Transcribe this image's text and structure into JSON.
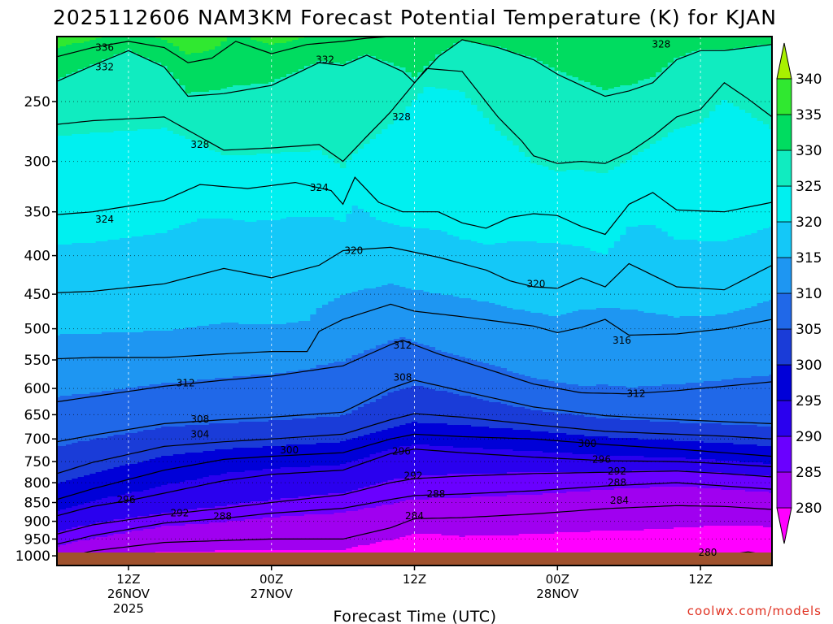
{
  "title": "2025112606 NAM3KM Forecast Potential Temperature (K) for KJAN",
  "xlabel": "Forecast Time (UTC)",
  "credit": "coolwx.com/models",
  "colors": {
    "ground": "#a0522d",
    "contour": "#000000",
    "credit": "#e03020",
    "bands": [
      "#ff00ff",
      "#a000f0",
      "#6a00ff",
      "#2a00ee",
      "#0000d8",
      "#1a3cd8",
      "#2068e8",
      "#1e96f2",
      "#14c8f8",
      "#00f0f0",
      "#10ecc0",
      "#00dc60",
      "#30e830",
      "#a8f000"
    ]
  },
  "chart_data": {
    "type": "contour",
    "title": "2025112606 NAM3KM Forecast Potential Temperature (K) for KJAN",
    "xlabel": "Forecast Time (UTC)",
    "ylabel": "",
    "y_scale": "log",
    "y_inverted": true,
    "y_ticks": [
      250,
      300,
      350,
      400,
      450,
      500,
      550,
      600,
      650,
      700,
      750,
      800,
      850,
      900,
      950,
      1000
    ],
    "y_range_hpa": [
      1030,
      205
    ],
    "x_range_hours": [
      6,
      66
    ],
    "x_ticks": [
      {
        "hour": 12,
        "lines": [
          "12Z",
          "26NOV",
          "2025"
        ]
      },
      {
        "hour": 24,
        "lines": [
          "00Z",
          "27NOV"
        ]
      },
      {
        "hour": 36,
        "lines": [
          "12Z"
        ]
      },
      {
        "hour": 48,
        "lines": [
          "00Z",
          "28NOV"
        ]
      },
      {
        "hour": 60,
        "lines": [
          "12Z"
        ]
      }
    ],
    "grid": true,
    "colorbar": {
      "levels": [
        280,
        285,
        290,
        295,
        300,
        305,
        310,
        315,
        320,
        325,
        330,
        335,
        340
      ],
      "extend": "both"
    },
    "contour_interval_k": 4,
    "contour_labels": [
      {
        "value": 336,
        "hour": 10.0,
        "p": 212
      },
      {
        "value": 332,
        "hour": 10.0,
        "p": 225
      },
      {
        "value": 332,
        "hour": 28.5,
        "p": 220
      },
      {
        "value": 328,
        "hour": 18.0,
        "p": 285
      },
      {
        "value": 328,
        "hour": 34.9,
        "p": 262
      },
      {
        "value": 328,
        "hour": 56.7,
        "p": 210
      },
      {
        "value": 324,
        "hour": 10.0,
        "p": 358
      },
      {
        "value": 324,
        "hour": 28.0,
        "p": 325
      },
      {
        "value": 320,
        "hour": 30.9,
        "p": 394
      },
      {
        "value": 320,
        "hour": 46.2,
        "p": 436
      },
      {
        "value": 316,
        "hour": 53.4,
        "p": 518
      },
      {
        "value": 312,
        "hour": 16.8,
        "p": 590
      },
      {
        "value": 312,
        "hour": 35.0,
        "p": 526
      },
      {
        "value": 312,
        "hour": 54.6,
        "p": 610
      },
      {
        "value": 308,
        "hour": 18.0,
        "p": 659
      },
      {
        "value": 308,
        "hour": 35.0,
        "p": 580
      },
      {
        "value": 304,
        "hour": 18.0,
        "p": 690
      },
      {
        "value": 300,
        "hour": 25.5,
        "p": 724
      },
      {
        "value": 300,
        "hour": 50.5,
        "p": 710
      },
      {
        "value": 296,
        "hour": 11.8,
        "p": 843
      },
      {
        "value": 296,
        "hour": 34.9,
        "p": 727
      },
      {
        "value": 296,
        "hour": 51.7,
        "p": 745
      },
      {
        "value": 292,
        "hour": 16.3,
        "p": 878
      },
      {
        "value": 292,
        "hour": 35.9,
        "p": 783
      },
      {
        "value": 292,
        "hour": 53.0,
        "p": 773
      },
      {
        "value": 288,
        "hour": 19.9,
        "p": 887
      },
      {
        "value": 288,
        "hour": 37.8,
        "p": 828
      },
      {
        "value": 288,
        "hour": 53.0,
        "p": 800
      },
      {
        "value": 284,
        "hour": 36.0,
        "p": 885
      },
      {
        "value": 284,
        "hour": 53.2,
        "p": 845
      },
      {
        "value": 280,
        "hour": 60.6,
        "p": 990
      }
    ],
    "isentrope_profiles": [
      {
        "theta": 280,
        "points": [
          [
            6,
            1030
          ],
          [
            30,
            1030
          ],
          [
            34,
            1005
          ],
          [
            37,
            1000
          ],
          [
            40,
            1030
          ],
          [
            57,
            1030
          ],
          [
            62,
            998
          ],
          [
            64,
            988
          ],
          [
            66,
            1000
          ]
        ]
      },
      {
        "theta": 284,
        "points": [
          [
            6,
            1010
          ],
          [
            9,
            985
          ],
          [
            15,
            960
          ],
          [
            24,
            950
          ],
          [
            30,
            950
          ],
          [
            34,
            918
          ],
          [
            36,
            893
          ],
          [
            40,
            890
          ],
          [
            46,
            880
          ],
          [
            52,
            866
          ],
          [
            58,
            858
          ],
          [
            62,
            860
          ],
          [
            66,
            868
          ]
        ]
      },
      {
        "theta": 288,
        "points": [
          [
            6,
            965
          ],
          [
            9,
            940
          ],
          [
            15,
            905
          ],
          [
            20,
            892
          ],
          [
            24,
            878
          ],
          [
            30,
            865
          ],
          [
            34,
            842
          ],
          [
            36,
            832
          ],
          [
            40,
            828
          ],
          [
            46,
            820
          ],
          [
            52,
            808
          ],
          [
            58,
            800
          ],
          [
            62,
            808
          ],
          [
            66,
            816
          ]
        ]
      },
      {
        "theta": 292,
        "points": [
          [
            6,
            936
          ],
          [
            9,
            910
          ],
          [
            15,
            882
          ],
          [
            20,
            865
          ],
          [
            24,
            850
          ],
          [
            30,
            830
          ],
          [
            34,
            800
          ],
          [
            36,
            790
          ],
          [
            40,
            784
          ],
          [
            46,
            778
          ],
          [
            52,
            775
          ],
          [
            58,
            772
          ],
          [
            62,
            778
          ],
          [
            66,
            786
          ]
        ]
      },
      {
        "theta": 296,
        "points": [
          [
            6,
            885
          ],
          [
            9,
            860
          ],
          [
            12,
            845
          ],
          [
            15,
            826
          ],
          [
            20,
            795
          ],
          [
            24,
            780
          ],
          [
            30,
            770
          ],
          [
            34,
            732
          ],
          [
            36,
            722
          ],
          [
            40,
            730
          ],
          [
            46,
            740
          ],
          [
            52,
            748
          ],
          [
            58,
            750
          ],
          [
            62,
            755
          ],
          [
            66,
            762
          ]
        ]
      },
      {
        "theta": 300,
        "points": [
          [
            6,
            842
          ],
          [
            9,
            815
          ],
          [
            15,
            770
          ],
          [
            20,
            745
          ],
          [
            24,
            738
          ],
          [
            30,
            730
          ],
          [
            34,
            700
          ],
          [
            36,
            690
          ],
          [
            40,
            695
          ],
          [
            46,
            700
          ],
          [
            52,
            712
          ],
          [
            58,
            722
          ],
          [
            62,
            730
          ],
          [
            66,
            738
          ]
        ]
      },
      {
        "theta": 304,
        "points": [
          [
            6,
            778
          ],
          [
            9,
            752
          ],
          [
            15,
            716
          ],
          [
            20,
            706
          ],
          [
            24,
            700
          ],
          [
            30,
            690
          ],
          [
            34,
            660
          ],
          [
            36,
            648
          ],
          [
            40,
            655
          ],
          [
            46,
            670
          ],
          [
            52,
            684
          ],
          [
            58,
            690
          ],
          [
            62,
            694
          ],
          [
            66,
            700
          ]
        ]
      },
      {
        "theta": 308,
        "points": [
          [
            6,
            706
          ],
          [
            9,
            692
          ],
          [
            15,
            668
          ],
          [
            20,
            660
          ],
          [
            24,
            655
          ],
          [
            30,
            645
          ],
          [
            34,
            600
          ],
          [
            36,
            585
          ],
          [
            40,
            605
          ],
          [
            46,
            635
          ],
          [
            52,
            652
          ],
          [
            58,
            660
          ],
          [
            62,
            664
          ],
          [
            66,
            668
          ]
        ]
      },
      {
        "theta": 312,
        "points": [
          [
            6,
            625
          ],
          [
            9,
            615
          ],
          [
            15,
            596
          ],
          [
            20,
            585
          ],
          [
            24,
            578
          ],
          [
            30,
            560
          ],
          [
            34,
            525
          ],
          [
            35,
            518
          ],
          [
            38,
            540
          ],
          [
            42,
            565
          ],
          [
            46,
            592
          ],
          [
            50,
            608
          ],
          [
            54,
            610
          ],
          [
            58,
            604
          ],
          [
            62,
            596
          ],
          [
            66,
            588
          ]
        ]
      },
      {
        "theta": 316,
        "points": [
          [
            6,
            548
          ],
          [
            9,
            546
          ],
          [
            15,
            546
          ],
          [
            20,
            540
          ],
          [
            24,
            536
          ],
          [
            27,
            536
          ],
          [
            28,
            504
          ],
          [
            30,
            486
          ],
          [
            34,
            464
          ],
          [
            36,
            474
          ],
          [
            40,
            482
          ],
          [
            46,
            496
          ],
          [
            48,
            506
          ],
          [
            50,
            498
          ],
          [
            52,
            486
          ],
          [
            54,
            510
          ],
          [
            58,
            508
          ],
          [
            62,
            500
          ],
          [
            66,
            486
          ]
        ]
      },
      {
        "theta": 320,
        "points": [
          [
            6,
            448
          ],
          [
            9,
            446
          ],
          [
            15,
            436
          ],
          [
            20,
            416
          ],
          [
            24,
            428
          ],
          [
            28,
            412
          ],
          [
            30,
            394
          ],
          [
            34,
            390
          ],
          [
            38,
            402
          ],
          [
            42,
            418
          ],
          [
            44,
            432
          ],
          [
            46,
            440
          ],
          [
            48,
            442
          ],
          [
            50,
            428
          ],
          [
            52,
            440
          ],
          [
            54,
            410
          ],
          [
            58,
            440
          ],
          [
            62,
            444
          ],
          [
            66,
            412
          ]
        ]
      },
      {
        "theta": 324,
        "points": [
          [
            6,
            353
          ],
          [
            9,
            350
          ],
          [
            15,
            338
          ],
          [
            18,
            322
          ],
          [
            22,
            326
          ],
          [
            26,
            320
          ],
          [
            29,
            328
          ],
          [
            30,
            342
          ],
          [
            31,
            315
          ],
          [
            33,
            340
          ],
          [
            35,
            350
          ],
          [
            38,
            350
          ],
          [
            40,
            362
          ],
          [
            42,
            368
          ],
          [
            44,
            356
          ],
          [
            46,
            352
          ],
          [
            48,
            354
          ],
          [
            50,
            366
          ],
          [
            52,
            375
          ],
          [
            54,
            342
          ],
          [
            56,
            330
          ],
          [
            58,
            348
          ],
          [
            62,
            350
          ],
          [
            66,
            340
          ]
        ]
      },
      {
        "theta": 328,
        "points": [
          [
            6,
            268
          ],
          [
            9,
            265
          ],
          [
            15,
            262
          ],
          [
            20,
            290
          ],
          [
            24,
            288
          ],
          [
            28,
            285
          ],
          [
            30,
            300
          ],
          [
            32,
            278
          ],
          [
            34,
            258
          ],
          [
            37,
            226
          ],
          [
            40,
            228
          ],
          [
            43,
            262
          ],
          [
            45,
            282
          ],
          [
            46,
            295
          ],
          [
            48,
            302
          ],
          [
            50,
            300
          ],
          [
            52,
            302
          ],
          [
            54,
            292
          ],
          [
            56,
            278
          ],
          [
            58,
            262
          ],
          [
            60,
            256
          ],
          [
            62,
            236
          ],
          [
            64,
            248
          ],
          [
            66,
            262
          ]
        ]
      },
      {
        "theta": 332,
        "points": [
          [
            6,
            235
          ],
          [
            9,
            224
          ],
          [
            12,
            214
          ],
          [
            15,
            225
          ],
          [
            17,
            246
          ],
          [
            20,
            244
          ],
          [
            24,
            238
          ],
          [
            28,
            222
          ],
          [
            30,
            224
          ],
          [
            32,
            217
          ],
          [
            35,
            228
          ],
          [
            36,
            236
          ],
          [
            38,
            218
          ],
          [
            40,
            207
          ],
          [
            43,
            212
          ],
          [
            46,
            220
          ],
          [
            48,
            230
          ],
          [
            50,
            238
          ],
          [
            52,
            246
          ],
          [
            54,
            242
          ],
          [
            56,
            236
          ],
          [
            58,
            220
          ],
          [
            60,
            214
          ],
          [
            62,
            214
          ],
          [
            66,
            210
          ]
        ]
      },
      {
        "theta": 336,
        "points": [
          [
            6,
            218
          ],
          [
            9,
            212
          ],
          [
            12,
            208
          ],
          [
            15,
            212
          ],
          [
            17,
            222
          ],
          [
            19,
            219
          ],
          [
            21,
            208
          ],
          [
            24,
            216
          ],
          [
            27,
            210
          ],
          [
            30,
            208
          ],
          [
            32,
            206
          ],
          [
            34,
            205
          ],
          [
            66,
            204
          ]
        ]
      }
    ]
  }
}
